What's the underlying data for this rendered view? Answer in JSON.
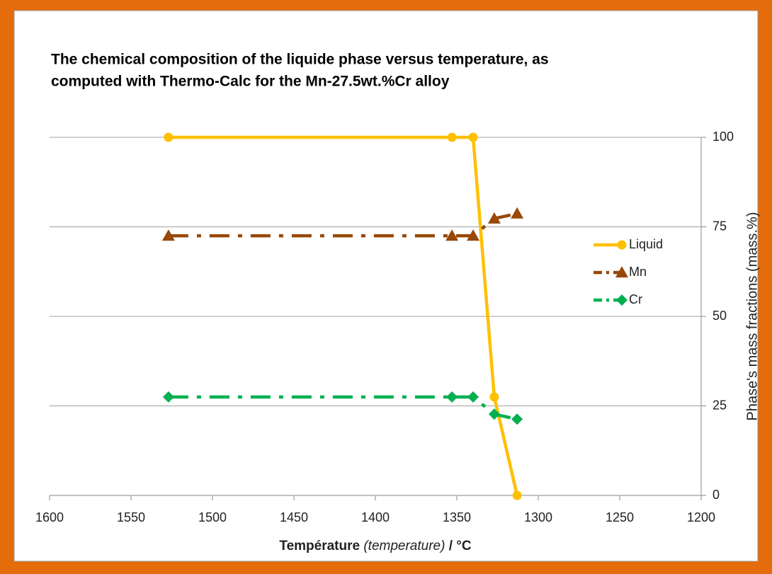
{
  "chart_data": {
    "type": "line",
    "title": [
      "The chemical composition of the liquide phase versus temperature, as",
      "computed with Thermo-Calc for the Mn-27.5wt.%Cr alloy"
    ],
    "x_label": [
      "Température",
      "(temperature)",
      "/ °C"
    ],
    "y_label": "Phase's mass fractions (mass.%)",
    "x": [
      1527,
      1353,
      1340,
      1327,
      1313
    ],
    "xlim": [
      1600,
      1200
    ],
    "xticks": [
      1600,
      1550,
      1500,
      1450,
      1400,
      1350,
      1300,
      1250,
      1200
    ],
    "ylim": [
      0,
      100
    ],
    "yticks": [
      0,
      25,
      50,
      75,
      100
    ],
    "y_axis_side": "right",
    "grid": true,
    "legend": "right",
    "series": [
      {
        "name": "Liquid",
        "color": "#ffc000",
        "marker": "circle",
        "line_style": "solid",
        "values": [
          100,
          100,
          100,
          27.5,
          0
        ]
      },
      {
        "name": "Mn",
        "color": "#984807",
        "marker": "triangle",
        "line_style": "dashdot",
        "values": [
          72.5,
          72.5,
          72.5,
          77.3,
          78.7
        ]
      },
      {
        "name": "Cr",
        "color": "#00b050",
        "marker": "diamond",
        "line_style": "dashdot",
        "values": [
          27.5,
          27.5,
          27.5,
          22.7,
          21.3
        ]
      }
    ]
  }
}
